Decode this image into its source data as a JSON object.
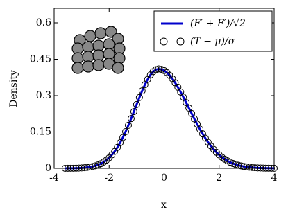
{
  "chart_data": {
    "type": "line",
    "xlabel": "x",
    "ylabel": "Density",
    "x": [
      -3.6,
      -3.5,
      -3.4,
      -3.3,
      -3.2,
      -3.1,
      -3.0,
      -2.9,
      -2.8,
      -2.7,
      -2.6,
      -2.5,
      -2.4,
      -2.3,
      -2.2,
      -2.1,
      -2.0,
      -1.9,
      -1.8,
      -1.7,
      -1.6,
      -1.5,
      -1.4,
      -1.3,
      -1.2,
      -1.1,
      -1.0,
      -0.9,
      -0.8,
      -0.7,
      -0.6,
      -0.5,
      -0.4,
      -0.3,
      -0.2,
      -0.1,
      0.0,
      0.1,
      0.2,
      0.3,
      0.4,
      0.5,
      0.6,
      0.7,
      0.8,
      0.9,
      1.0,
      1.1,
      1.2,
      1.3,
      1.4,
      1.5,
      1.6,
      1.7,
      1.8,
      1.9,
      2.0,
      2.1,
      2.2,
      2.3,
      2.4,
      2.5,
      2.6,
      2.7,
      2.8,
      2.9,
      3.0,
      3.1,
      3.2,
      3.3,
      3.4,
      3.5,
      3.6,
      3.7,
      3.8,
      3.9,
      4.0
    ],
    "series": [
      {
        "name": "(F′ + F′)/√2",
        "color": "#0000cc",
        "style": "line",
        "values": [
          0.0001,
          0.0002,
          0.0003,
          0.0005,
          0.0008,
          0.0012,
          0.0018,
          0.0026,
          0.0038,
          0.0054,
          0.0076,
          0.0105,
          0.0144,
          0.0194,
          0.0257,
          0.0337,
          0.0436,
          0.0555,
          0.0697,
          0.0864,
          0.1056,
          0.1273,
          0.1513,
          0.1775,
          0.2052,
          0.234,
          0.2633,
          0.2921,
          0.3196,
          0.3449,
          0.3669,
          0.3852,
          0.3988,
          0.4072,
          0.41,
          0.4083,
          0.4033,
          0.395,
          0.3838,
          0.3698,
          0.3533,
          0.3348,
          0.3147,
          0.2934,
          0.2712,
          0.2487,
          0.2262,
          0.2039,
          0.1824,
          0.1618,
          0.1424,
          0.1242,
          0.1075,
          0.0923,
          0.0785,
          0.0663,
          0.0555,
          0.0461,
          0.038,
          0.031,
          0.0251,
          0.0202,
          0.0161,
          0.0127,
          0.01,
          0.0077,
          0.006,
          0.0046,
          0.0035,
          0.0026,
          0.0019,
          0.0014,
          0.0011,
          0.0008,
          0.0006,
          0.0004,
          0.0003
        ]
      },
      {
        "name": "(T − μ)/σ",
        "color": "#000000",
        "style": "circle",
        "values": [
          0.0001,
          0.0002,
          0.0003,
          0.0005,
          0.0008,
          0.0012,
          0.0018,
          0.0026,
          0.0038,
          0.0054,
          0.0076,
          0.0105,
          0.0144,
          0.0194,
          0.0257,
          0.0337,
          0.0436,
          0.0555,
          0.0697,
          0.0864,
          0.1056,
          0.1273,
          0.1513,
          0.1775,
          0.2052,
          0.234,
          0.2633,
          0.2921,
          0.3196,
          0.3449,
          0.3669,
          0.3852,
          0.3988,
          0.4072,
          0.41,
          0.4083,
          0.4033,
          0.395,
          0.3838,
          0.3698,
          0.3533,
          0.3348,
          0.3147,
          0.2934,
          0.2712,
          0.2487,
          0.2262,
          0.2039,
          0.1824,
          0.1618,
          0.1424,
          0.1242,
          0.1075,
          0.0923,
          0.0785,
          0.0663,
          0.0555,
          0.0461,
          0.038,
          0.031,
          0.0251,
          0.0202,
          0.0161,
          0.0127,
          0.01,
          0.0077,
          0.006,
          0.0046,
          0.0035,
          0.0026,
          0.0019,
          0.0014,
          0.0011,
          0.0008,
          0.0006,
          0.0004,
          0.0003
        ]
      }
    ],
    "xlim": [
      -4,
      4
    ],
    "ylim": [
      0,
      0.66
    ],
    "xticks": [
      -4,
      -2,
      0,
      2,
      4
    ],
    "yticks": [
      0,
      0.15,
      0.3,
      0.45,
      0.6
    ],
    "legend": "upper right"
  }
}
